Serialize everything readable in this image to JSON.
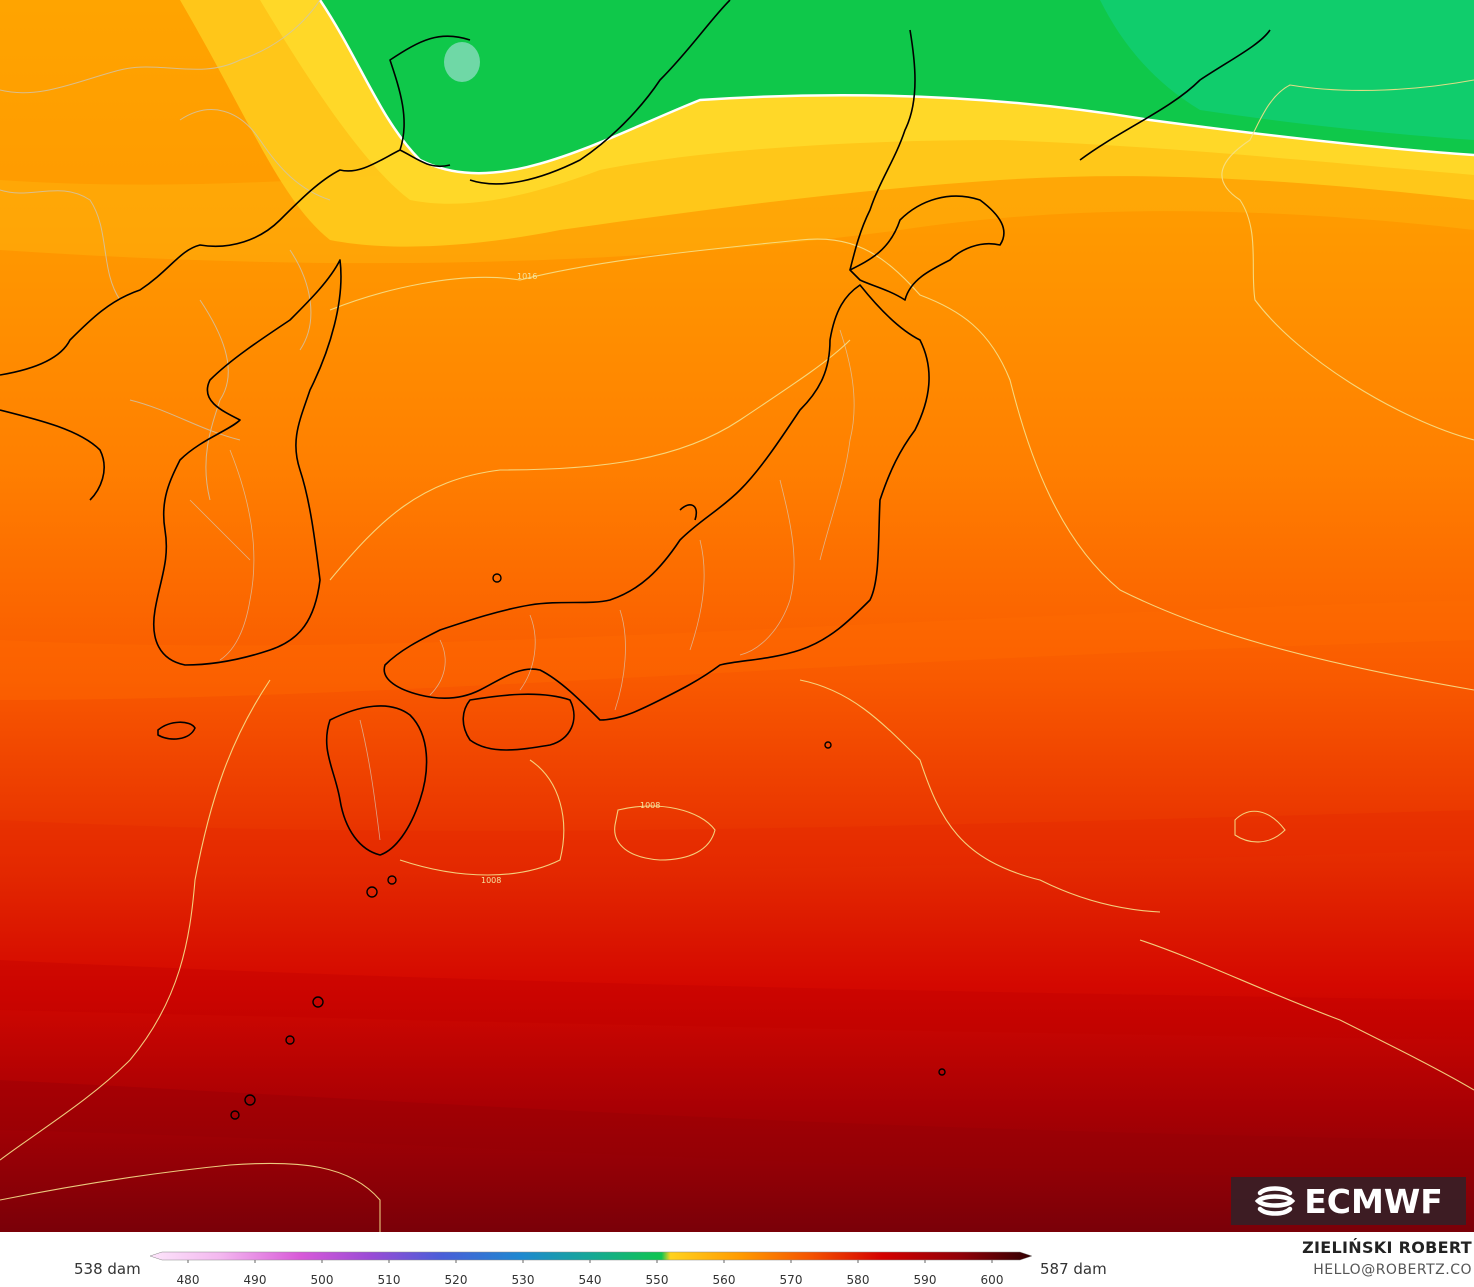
{
  "map": {
    "isobar_labels": [
      "1016",
      "1008",
      "1008"
    ],
    "colors": {
      "green": "#0fc84a",
      "yellow": "#ffd21f",
      "orange": "#ff9a00",
      "red": "#e02000",
      "darkred": "#7a0008",
      "coastline": "#000000",
      "borders": "#c9c0a8"
    }
  },
  "logo": {
    "text": "ECMWF"
  },
  "legend": {
    "min_label": "538 dam",
    "max_label": "587 dam",
    "ticks": [
      "480",
      "490",
      "500",
      "510",
      "520",
      "530",
      "540",
      "550",
      "560",
      "570",
      "580",
      "590",
      "600"
    ]
  },
  "author": {
    "name": "ZIELIŃSKI ROBERT",
    "email": "HELLO@ROBERTZ.CO"
  }
}
